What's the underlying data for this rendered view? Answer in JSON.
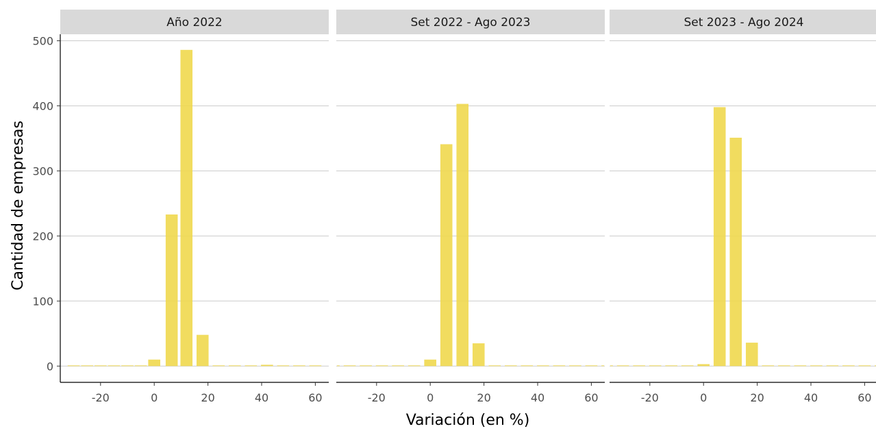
{
  "chart_data": {
    "type": "bar",
    "xlabel": "Variación (en %)",
    "ylabel": "Cantidad de empresas",
    "xlim": [
      -35,
      65
    ],
    "ylim": [
      -25,
      510
    ],
    "x_ticks": [
      -20,
      0,
      20,
      40,
      60
    ],
    "y_ticks": [
      0,
      100,
      200,
      300,
      400,
      500
    ],
    "grid": "horizontal major",
    "bar_width": 5,
    "bar_color": "#F0D84E",
    "panels": [
      {
        "title": "Año 2022",
        "bars": [
          {
            "x": -30,
            "y": 0
          },
          {
            "x": -25,
            "y": 0
          },
          {
            "x": -20,
            "y": 0
          },
          {
            "x": -15,
            "y": 0
          },
          {
            "x": -10,
            "y": 0
          },
          {
            "x": -5,
            "y": 0
          },
          {
            "x": 0,
            "y": 10
          },
          {
            "x": 6.5,
            "y": 233
          },
          {
            "x": 12,
            "y": 486
          },
          {
            "x": 18,
            "y": 48
          },
          {
            "x": 24,
            "y": 0
          },
          {
            "x": 30,
            "y": 1
          },
          {
            "x": 36,
            "y": 0
          },
          {
            "x": 42,
            "y": 2
          },
          {
            "x": 48,
            "y": 0
          },
          {
            "x": 54,
            "y": 0
          },
          {
            "x": 60,
            "y": 0
          }
        ]
      },
      {
        "title": "Set 2022 - Ago 2023",
        "bars": [
          {
            "x": -36,
            "y": 1
          },
          {
            "x": -30,
            "y": 0
          },
          {
            "x": -24,
            "y": 0
          },
          {
            "x": -18,
            "y": 0
          },
          {
            "x": -12,
            "y": 0
          },
          {
            "x": -6,
            "y": 0
          },
          {
            "x": 0,
            "y": 10
          },
          {
            "x": 6,
            "y": 341
          },
          {
            "x": 12,
            "y": 403
          },
          {
            "x": 18,
            "y": 35
          },
          {
            "x": 24,
            "y": 0
          },
          {
            "x": 30,
            "y": 1
          },
          {
            "x": 36,
            "y": 0
          },
          {
            "x": 42,
            "y": 0
          },
          {
            "x": 48,
            "y": 0
          },
          {
            "x": 54,
            "y": 0
          },
          {
            "x": 60,
            "y": 0
          },
          {
            "x": 66,
            "y": 1
          }
        ]
      },
      {
        "title": "Set 2023 - Ago 2024",
        "bars": [
          {
            "x": -36,
            "y": 1
          },
          {
            "x": -30,
            "y": 0
          },
          {
            "x": -24,
            "y": 0
          },
          {
            "x": -18,
            "y": 0
          },
          {
            "x": -12,
            "y": 0
          },
          {
            "x": -6,
            "y": 0
          },
          {
            "x": 0,
            "y": 3
          },
          {
            "x": 6,
            "y": 398
          },
          {
            "x": 12,
            "y": 351
          },
          {
            "x": 18,
            "y": 36
          },
          {
            "x": 24,
            "y": 0
          },
          {
            "x": 30,
            "y": 1
          },
          {
            "x": 36,
            "y": 0
          },
          {
            "x": 42,
            "y": 0
          },
          {
            "x": 48,
            "y": 0
          },
          {
            "x": 54,
            "y": 0
          },
          {
            "x": 60,
            "y": 0
          },
          {
            "x": 66,
            "y": 1
          }
        ]
      }
    ]
  }
}
